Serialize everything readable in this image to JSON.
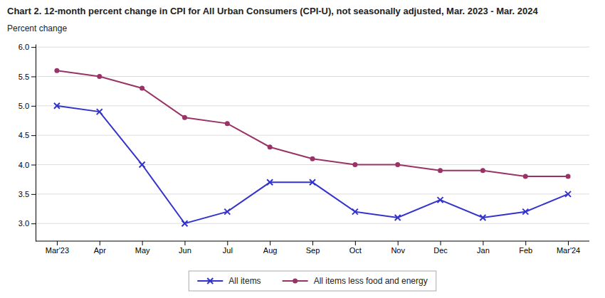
{
  "chart_data": {
    "type": "line",
    "title": "Chart 2. 12-month percent change in CPI for All Urban Consumers (CPI-U), not seasonally adjusted, Mar. 2023 - Mar. 2024",
    "ylabel": "Percent change",
    "categories": [
      "Mar'23",
      "Apr",
      "May",
      "Jun",
      "Jul",
      "Aug",
      "Sep",
      "Oct",
      "Nov",
      "Dec",
      "Jan",
      "Feb",
      "Mar'24"
    ],
    "series": [
      {
        "name": "All items",
        "color": "#3333cc",
        "marker": "x",
        "values": [
          5.0,
          4.9,
          4.0,
          3.0,
          3.2,
          3.7,
          3.7,
          3.2,
          3.1,
          3.4,
          3.1,
          3.2,
          3.5
        ]
      },
      {
        "name": "All items less food and energy",
        "color": "#993366",
        "marker": "circle",
        "values": [
          5.6,
          5.5,
          5.3,
          4.8,
          4.7,
          4.3,
          4.1,
          4.0,
          4.0,
          3.9,
          3.9,
          3.8,
          3.8
        ]
      }
    ],
    "ylim": [
      2.7,
      6.05
    ],
    "yticks": [
      {
        "value": 3.0,
        "label": "3.0"
      },
      3.5,
      {
        "value": 4.0,
        "label": "4.0"
      },
      4.5,
      {
        "value": 5.0,
        "label": "5.0"
      },
      5.5,
      {
        "value": 6.0,
        "label": "6.0"
      }
    ],
    "grid": true,
    "legend": "bottom"
  }
}
